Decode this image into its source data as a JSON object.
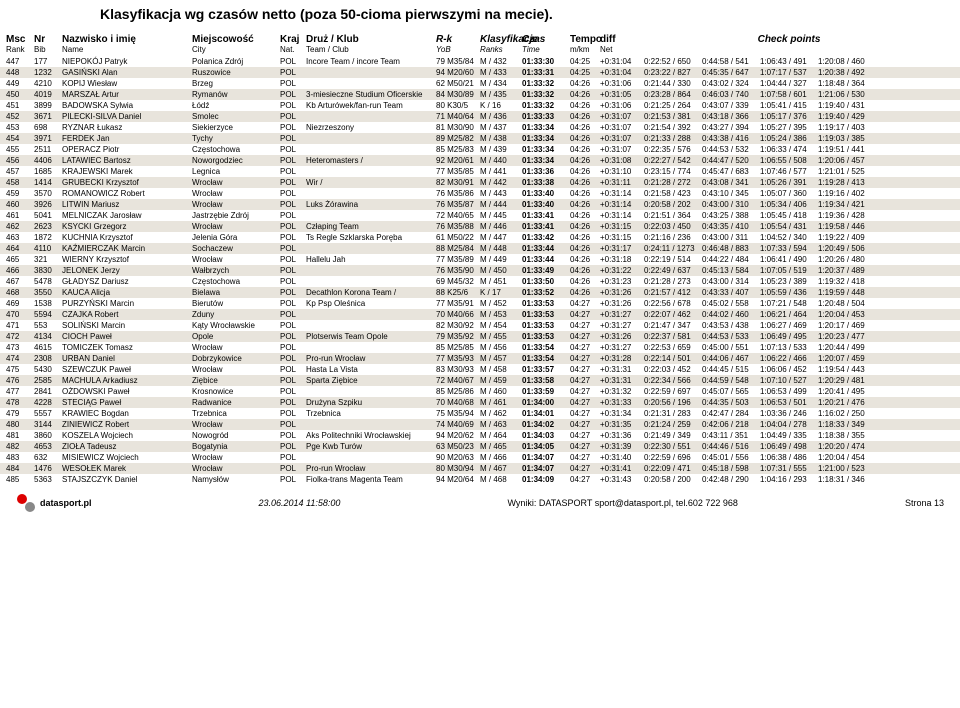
{
  "title": "Klasyfikacja wg czasów netto (poza 50-cioma pierwszymi na mecie).",
  "headers": {
    "msc": "Msc",
    "rank": "Rank",
    "nr": "Nr",
    "bib": "Bib",
    "name": "Nazwisko i imię",
    "name2": "Name",
    "city": "Miejscowość",
    "city2": "City",
    "kraj": "Kraj",
    "nat": "Nat.",
    "team": "Druż / Klub",
    "team2": "Team / Club",
    "rk": "R-k",
    "yob": "YoB",
    "klas": "Klasyfikacje",
    "ranks": "Ranks",
    "czas": "Czas",
    "time": "Time",
    "tempo": "Tempo",
    "mkm": "m/km",
    "diff": "diff",
    "net": "Net",
    "checkpoints": "Check points"
  },
  "rows": [
    {
      "msc": "447",
      "nr": "177",
      "name": "NIEPOKÓJ Patryk",
      "city": "Polanica Zdrój",
      "kraj": "POL",
      "team": "Incore Team / incore Team",
      "rk": "79 M35/84",
      "klas": "M / 432",
      "czas": "01:33:30",
      "tempo": "04:25",
      "diff": "+0:31:04",
      "cp": [
        "0:22:52 / 650",
        "0:44:58 / 541",
        "1:06:43 / 491",
        "1:20:08 / 460"
      ]
    },
    {
      "msc": "448",
      "nr": "1232",
      "name": "GASIŃSKI Alan",
      "city": "Ruszowice",
      "kraj": "POL",
      "team": "",
      "rk": "94 M20/60",
      "klas": "M / 433",
      "czas": "01:33:31",
      "tempo": "04:25",
      "diff": "+0:31:04",
      "cp": [
        "0:23:22 / 827",
        "0:45:35 / 647",
        "1:07:17 / 537",
        "1:20:38 / 492"
      ]
    },
    {
      "msc": "449",
      "nr": "4210",
      "name": "KOPIJ Wiesław",
      "city": "Brzeg",
      "kraj": "POL",
      "team": "",
      "rk": "62 M50/21",
      "klas": "M / 434",
      "czas": "01:33:32",
      "tempo": "04:26",
      "diff": "+0:31:06",
      "cp": [
        "0:21:44 / 330",
        "0:43:02 / 324",
        "1:04:44 / 327",
        "1:18:48 / 364"
      ]
    },
    {
      "msc": "450",
      "nr": "4019",
      "name": "MARSZAŁ Artur",
      "city": "Rymanów",
      "kraj": "POL",
      "team": "3-miesieczne Studium Oficerskie",
      "rk": "84 M30/89",
      "klas": "M / 435",
      "czas": "01:33:32",
      "tempo": "04:26",
      "diff": "+0:31:05",
      "cp": [
        "0:23:28 / 864",
        "0:46:03 / 740",
        "1:07:58 / 601",
        "1:21:06 / 530"
      ]
    },
    {
      "msc": "451",
      "nr": "3899",
      "name": "BADOWSKA Sylwia",
      "city": "Łódź",
      "kraj": "POL",
      "team": "Kb Arturówek/fan-run Team",
      "rk": "80 K30/5",
      "klas": "K / 16",
      "czas": "01:33:32",
      "tempo": "04:26",
      "diff": "+0:31:06",
      "cp": [
        "0:21:25 / 264",
        "0:43:07 / 339",
        "1:05:41 / 415",
        "1:19:40 / 431"
      ]
    },
    {
      "msc": "452",
      "nr": "3671",
      "name": "PILECKI-SILVA Daniel",
      "city": "Smolec",
      "kraj": "POL",
      "team": "",
      "rk": "71 M40/64",
      "klas": "M / 436",
      "czas": "01:33:33",
      "tempo": "04:26",
      "diff": "+0:31:07",
      "cp": [
        "0:21:53 / 381",
        "0:43:18 / 366",
        "1:05:17 / 376",
        "1:19:40 / 429"
      ]
    },
    {
      "msc": "453",
      "nr": "698",
      "name": "RYZNAR Łukasz",
      "city": "Siekierzyce",
      "kraj": "POL",
      "team": "Niezrzeszony",
      "rk": "81 M30/90",
      "klas": "M / 437",
      "czas": "01:33:34",
      "tempo": "04:26",
      "diff": "+0:31:07",
      "cp": [
        "0:21:54 / 392",
        "0:43:27 / 394",
        "1:05:27 / 395",
        "1:19:17 / 403"
      ]
    },
    {
      "msc": "454",
      "nr": "3971",
      "name": "FERDEK Jan",
      "city": "Tychy",
      "kraj": "POL",
      "team": "",
      "rk": "89 M25/82",
      "klas": "M / 438",
      "czas": "01:33:34",
      "tempo": "04:26",
      "diff": "+0:31:07",
      "cp": [
        "0:21:33 / 288",
        "0:43:38 / 416",
        "1:05:24 / 386",
        "1:19:03 / 385"
      ]
    },
    {
      "msc": "455",
      "nr": "2511",
      "name": "OPERACZ Piotr",
      "city": "Częstochowa",
      "kraj": "POL",
      "team": "",
      "rk": "85 M25/83",
      "klas": "M / 439",
      "czas": "01:33:34",
      "tempo": "04:26",
      "diff": "+0:31:07",
      "cp": [
        "0:22:35 / 576",
        "0:44:53 / 532",
        "1:06:33 / 474",
        "1:19:51 / 441"
      ]
    },
    {
      "msc": "456",
      "nr": "4406",
      "name": "LATAWIEC Bartosz",
      "city": "Noworgodziec",
      "kraj": "POL",
      "team": "Heteromasters /",
      "rk": "92 M20/61",
      "klas": "M / 440",
      "czas": "01:33:34",
      "tempo": "04:26",
      "diff": "+0:31:08",
      "cp": [
        "0:22:27 / 542",
        "0:44:47 / 520",
        "1:06:55 / 508",
        "1:20:06 / 457"
      ]
    },
    {
      "msc": "457",
      "nr": "1685",
      "name": "KRAJEWSKI Marek",
      "city": "Legnica",
      "kraj": "POL",
      "team": "",
      "rk": "77 M35/85",
      "klas": "M / 441",
      "czas": "01:33:36",
      "tempo": "04:26",
      "diff": "+0:31:10",
      "cp": [
        "0:23:15 / 774",
        "0:45:47 / 683",
        "1:07:46 / 577",
        "1:21:01 / 525"
      ]
    },
    {
      "msc": "458",
      "nr": "1414",
      "name": "GRUBECKI Krzysztof",
      "city": "Wrocław",
      "kraj": "POL",
      "team": "Wir /",
      "rk": "82 M30/91",
      "klas": "M / 442",
      "czas": "01:33:38",
      "tempo": "04:26",
      "diff": "+0:31:11",
      "cp": [
        "0:21:28 / 272",
        "0:43:08 / 341",
        "1:05:26 / 391",
        "1:19:28 / 413"
      ]
    },
    {
      "msc": "459",
      "nr": "3570",
      "name": "ROMANOWICZ Robert",
      "city": "Wrocław",
      "kraj": "POL",
      "team": "",
      "rk": "76 M35/86",
      "klas": "M / 443",
      "czas": "01:33:40",
      "tempo": "04:26",
      "diff": "+0:31:14",
      "cp": [
        "0:21:58 / 423",
        "0:43:10 / 345",
        "1:05:07 / 360",
        "1:19:16 / 402"
      ]
    },
    {
      "msc": "460",
      "nr": "3926",
      "name": "LITWIN Mariusz",
      "city": "Wrocław",
      "kraj": "POL",
      "team": "Luks Żórawina",
      "rk": "76 M35/87",
      "klas": "M / 444",
      "czas": "01:33:40",
      "tempo": "04:26",
      "diff": "+0:31:14",
      "cp": [
        "0:20:58 / 202",
        "0:43:00 / 310",
        "1:05:34 / 406",
        "1:19:34 / 421"
      ]
    },
    {
      "msc": "461",
      "nr": "5041",
      "name": "MELNICZAK Jarosław",
      "city": "Jastrzębie Zdrój",
      "kraj": "POL",
      "team": "",
      "rk": "72 M40/65",
      "klas": "M / 445",
      "czas": "01:33:41",
      "tempo": "04:26",
      "diff": "+0:31:14",
      "cp": [
        "0:21:51 / 364",
        "0:43:25 / 388",
        "1:05:45 / 418",
        "1:19:36 / 428"
      ]
    },
    {
      "msc": "462",
      "nr": "2623",
      "name": "KSYCKI Grzegorz",
      "city": "Wrocław",
      "kraj": "POL",
      "team": "Człaping Team",
      "rk": "76 M35/88",
      "klas": "M / 446",
      "czas": "01:33:41",
      "tempo": "04:26",
      "diff": "+0:31:15",
      "cp": [
        "0:22:03 / 450",
        "0:43:35 / 410",
        "1:05:54 / 431",
        "1:19:58 / 446"
      ]
    },
    {
      "msc": "463",
      "nr": "1872",
      "name": "KUCHNIA Krzysztof",
      "city": "Jelenia Góra",
      "kraj": "POL",
      "team": "Ts Regle Szklarska Poręba",
      "rk": "61 M50/22",
      "klas": "M / 447",
      "czas": "01:33:42",
      "tempo": "04:26",
      "diff": "+0:31:15",
      "cp": [
        "0:21:16 / 236",
        "0:43:00 / 311",
        "1:04:52 / 340",
        "1:19:22 / 409"
      ]
    },
    {
      "msc": "464",
      "nr": "4110",
      "name": "KAŹMIERCZAK Marcin",
      "city": "Sochaczew",
      "kraj": "POL",
      "team": "",
      "rk": "88 M25/84",
      "klas": "M / 448",
      "czas": "01:33:44",
      "tempo": "04:26",
      "diff": "+0:31:17",
      "cp": [
        "0:24:11 / 1273",
        "0:46:48 / 883",
        "1:07:33 / 594",
        "1:20:49 / 506"
      ]
    },
    {
      "msc": "465",
      "nr": "321",
      "name": "WIERNY Krzysztof",
      "city": "Wrocław",
      "kraj": "POL",
      "team": "Hallelu Jah",
      "rk": "77 M35/89",
      "klas": "M / 449",
      "czas": "01:33:44",
      "tempo": "04:26",
      "diff": "+0:31:18",
      "cp": [
        "0:22:19 / 514",
        "0:44:22 / 484",
        "1:06:41 / 490",
        "1:20:26 / 480"
      ]
    },
    {
      "msc": "466",
      "nr": "3830",
      "name": "JELONEK Jerzy",
      "city": "Wałbrzych",
      "kraj": "POL",
      "team": "",
      "rk": "76 M35/90",
      "klas": "M / 450",
      "czas": "01:33:49",
      "tempo": "04:26",
      "diff": "+0:31:22",
      "cp": [
        "0:22:49 / 637",
        "0:45:13 / 584",
        "1:07:05 / 519",
        "1:20:37 / 489"
      ]
    },
    {
      "msc": "467",
      "nr": "5478",
      "name": "GŁADYSZ Dariusz",
      "city": "Częstochowa",
      "kraj": "POL",
      "team": "",
      "rk": "69 M45/32",
      "klas": "M / 451",
      "czas": "01:33:50",
      "tempo": "04:26",
      "diff": "+0:31:23",
      "cp": [
        "0:21:28 / 273",
        "0:43:00 / 314",
        "1:05:23 / 389",
        "1:19:32 / 418"
      ]
    },
    {
      "msc": "468",
      "nr": "3550",
      "name": "KAUCA Alicja",
      "city": "Bielawa",
      "kraj": "POL",
      "team": "Decathlon Korona Team /",
      "rk": "88 K25/6",
      "klas": "K / 17",
      "czas": "01:33:52",
      "tempo": "04:26",
      "diff": "+0:31:26",
      "cp": [
        "0:21:57 / 412",
        "0:43:33 / 407",
        "1:05:59 / 436",
        "1:19:59 / 448"
      ]
    },
    {
      "msc": "469",
      "nr": "1538",
      "name": "PURZYŃSKI Marcin",
      "city": "Bierutów",
      "kraj": "POL",
      "team": "Kp Psp Oleśnica",
      "rk": "77 M35/91",
      "klas": "M / 452",
      "czas": "01:33:53",
      "tempo": "04:27",
      "diff": "+0:31:26",
      "cp": [
        "0:22:56 / 678",
        "0:45:02 / 558",
        "1:07:21 / 548",
        "1:20:48 / 504"
      ]
    },
    {
      "msc": "470",
      "nr": "5594",
      "name": "CZAJKA Robert",
      "city": "Zduny",
      "kraj": "POL",
      "team": "",
      "rk": "70 M40/66",
      "klas": "M / 453",
      "czas": "01:33:53",
      "tempo": "04:27",
      "diff": "+0:31:27",
      "cp": [
        "0:22:07 / 462",
        "0:44:02 / 460",
        "1:06:21 / 464",
        "1:20:04 / 453"
      ]
    },
    {
      "msc": "471",
      "nr": "553",
      "name": "SOLIŃSKI Marcin",
      "city": "Kąty Wrocławskie",
      "kraj": "POL",
      "team": "",
      "rk": "82 M30/92",
      "klas": "M / 454",
      "czas": "01:33:53",
      "tempo": "04:27",
      "diff": "+0:31:27",
      "cp": [
        "0:21:47 / 347",
        "0:43:53 / 438",
        "1:06:27 / 469",
        "1:20:17 / 469"
      ]
    },
    {
      "msc": "472",
      "nr": "4134",
      "name": "CIOCH Paweł",
      "city": "Opole",
      "kraj": "POL",
      "team": "Plotserwis Team Opole",
      "rk": "79 M35/92",
      "klas": "M / 455",
      "czas": "01:33:53",
      "tempo": "04:27",
      "diff": "+0:31:26",
      "cp": [
        "0:22:37 / 581",
        "0:44:53 / 533",
        "1:06:49 / 495",
        "1:20:23 / 477"
      ]
    },
    {
      "msc": "473",
      "nr": "4615",
      "name": "TOMICZEK Tomasz",
      "city": "Wrocław",
      "kraj": "POL",
      "team": "",
      "rk": "85 M25/85",
      "klas": "M / 456",
      "czas": "01:33:54",
      "tempo": "04:27",
      "diff": "+0:31:27",
      "cp": [
        "0:22:53 / 659",
        "0:45:00 / 551",
        "1:07:13 / 533",
        "1:20:44 / 499"
      ]
    },
    {
      "msc": "474",
      "nr": "2308",
      "name": "URBAN Daniel",
      "city": "Dobrzykowice",
      "kraj": "POL",
      "team": "Pro-run Wrocław",
      "rk": "77 M35/93",
      "klas": "M / 457",
      "czas": "01:33:54",
      "tempo": "04:27",
      "diff": "+0:31:28",
      "cp": [
        "0:22:14 / 501",
        "0:44:06 / 467",
        "1:06:22 / 466",
        "1:20:07 / 459"
      ]
    },
    {
      "msc": "475",
      "nr": "5430",
      "name": "SZEWCZUK Paweł",
      "city": "Wrocław",
      "kraj": "POL",
      "team": "Hasta La Vista",
      "rk": "83 M30/93",
      "klas": "M / 458",
      "czas": "01:33:57",
      "tempo": "04:27",
      "diff": "+0:31:31",
      "cp": [
        "0:22:03 / 452",
        "0:44:45 / 515",
        "1:06:06 / 452",
        "1:19:54 / 443"
      ]
    },
    {
      "msc": "476",
      "nr": "2585",
      "name": "MACHULA Arkadiusz",
      "city": "Ziębice",
      "kraj": "POL",
      "team": "Sparta Ziębice",
      "rk": "72 M40/67",
      "klas": "M / 459",
      "czas": "01:33:58",
      "tempo": "04:27",
      "diff": "+0:31:31",
      "cp": [
        "0:22:34 / 566",
        "0:44:59 / 548",
        "1:07:10 / 527",
        "1:20:29 / 481"
      ]
    },
    {
      "msc": "477",
      "nr": "2841",
      "name": "OŻDOWSKI Paweł",
      "city": "Krosnowice",
      "kraj": "POL",
      "team": "",
      "rk": "85 M25/86",
      "klas": "M / 460",
      "czas": "01:33:59",
      "tempo": "04:27",
      "diff": "+0:31:32",
      "cp": [
        "0:22:59 / 697",
        "0:45:07 / 565",
        "1:06:53 / 499",
        "1:20:41 / 495"
      ]
    },
    {
      "msc": "478",
      "nr": "4228",
      "name": "STECIĄG Paweł",
      "city": "Radwanice",
      "kraj": "POL",
      "team": "Drużyna Szpiku",
      "rk": "70 M40/68",
      "klas": "M / 461",
      "czas": "01:34:00",
      "tempo": "04:27",
      "diff": "+0:31:33",
      "cp": [
        "0:20:56 / 196",
        "0:44:35 / 503",
        "1:06:53 / 501",
        "1:20:21 / 476"
      ]
    },
    {
      "msc": "479",
      "nr": "5557",
      "name": "KRAWIEC Bogdan",
      "city": "Trzebnica",
      "kraj": "POL",
      "team": "Trzebnica",
      "rk": "75 M35/94",
      "klas": "M / 462",
      "czas": "01:34:01",
      "tempo": "04:27",
      "diff": "+0:31:34",
      "cp": [
        "0:21:31 / 283",
        "0:42:47 / 284",
        "1:03:36 / 246",
        "1:16:02 / 250"
      ]
    },
    {
      "msc": "480",
      "nr": "3144",
      "name": "ZINIEWICZ Robert",
      "city": "Wrocław",
      "kraj": "POL",
      "team": "",
      "rk": "74 M40/69",
      "klas": "M / 463",
      "czas": "01:34:02",
      "tempo": "04:27",
      "diff": "+0:31:35",
      "cp": [
        "0:21:24 / 259",
        "0:42:06 / 218",
        "1:04:04 / 278",
        "1:18:33 / 349"
      ]
    },
    {
      "msc": "481",
      "nr": "3860",
      "name": "KOSZELA Wojciech",
      "city": "Nowogród",
      "kraj": "POL",
      "team": "Aks Politechniki Wrocławskiej",
      "rk": "94 M20/62",
      "klas": "M / 464",
      "czas": "01:34:03",
      "tempo": "04:27",
      "diff": "+0:31:36",
      "cp": [
        "0:21:49 / 349",
        "0:43:11 / 351",
        "1:04:49 / 335",
        "1:18:38 / 355"
      ]
    },
    {
      "msc": "482",
      "nr": "4653",
      "name": "ZIOŁA Tadeusz",
      "city": "Bogatynia",
      "kraj": "POL",
      "team": "Pge Kwb Turów",
      "rk": "63 M50/23",
      "klas": "M / 465",
      "czas": "01:34:05",
      "tempo": "04:27",
      "diff": "+0:31:39",
      "cp": [
        "0:22:30 / 551",
        "0:44:46 / 516",
        "1:06:49 / 498",
        "1:20:20 / 474"
      ]
    },
    {
      "msc": "483",
      "nr": "632",
      "name": "MISIEWICZ Wojciech",
      "city": "Wrocław",
      "kraj": "POL",
      "team": "",
      "rk": "90 M20/63",
      "klas": "M / 466",
      "czas": "01:34:07",
      "tempo": "04:27",
      "diff": "+0:31:40",
      "cp": [
        "0:22:59 / 696",
        "0:45:01 / 556",
        "1:06:38 / 486",
        "1:20:04 / 454"
      ]
    },
    {
      "msc": "484",
      "nr": "1476",
      "name": "WESOŁEK Marek",
      "city": "Wrocław",
      "kraj": "POL",
      "team": "Pro-run Wrocław",
      "rk": "80 M30/94",
      "klas": "M / 467",
      "czas": "01:34:07",
      "tempo": "04:27",
      "diff": "+0:31:41",
      "cp": [
        "0:22:09 / 471",
        "0:45:18 / 598",
        "1:07:31 / 555",
        "1:21:00 / 523"
      ]
    },
    {
      "msc": "485",
      "nr": "5363",
      "name": "STAJSZCZYK Daniel",
      "city": "Namysłów",
      "kraj": "POL",
      "team": "Fiolka-trans Magenta Team",
      "rk": "94 M20/64",
      "klas": "M / 468",
      "czas": "01:34:09",
      "tempo": "04:27",
      "diff": "+0:31:43",
      "cp": [
        "0:20:58 / 200",
        "0:42:48 / 290",
        "1:04:16 / 293",
        "1:18:31 / 346"
      ]
    }
  ],
  "footer": {
    "date": "23.06.2014 11:58:00",
    "logo": "datasport.pl",
    "center": "Wyniki: DATASPORT sport@datasport.pl, tel.602 722 968",
    "page": "Strona",
    "pagenum": "13"
  }
}
